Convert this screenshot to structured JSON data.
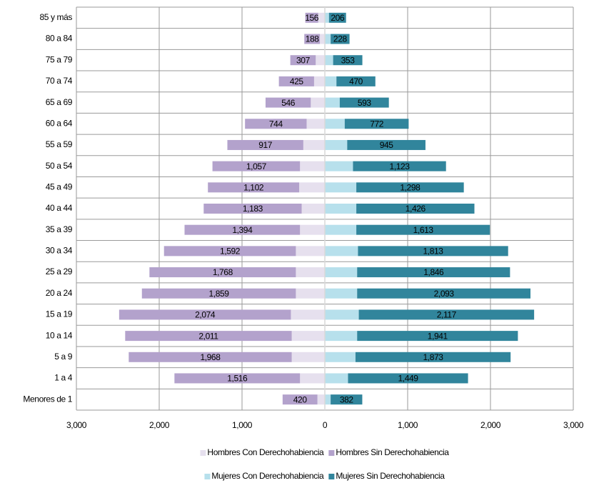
{
  "chart_data": {
    "type": "pyramid",
    "categories": [
      "85 y más",
      "80 a 84",
      "75 a 79",
      "70 a 74",
      "65 a 69",
      "60 a 64",
      "55 a 59",
      "50 a 54",
      "45 a 49",
      "40 a 44",
      "35 a 39",
      "30 a 34",
      "25 a 29",
      "20 a 24",
      "15 a 19",
      "10 a 14",
      "5 a 9",
      "1 a 4",
      "Menores de 1"
    ],
    "series": [
      {
        "name": "Hombres Con Derechohabiencia",
        "color": "#e6e0ee",
        "values": [
          80,
          60,
          110,
          130,
          170,
          220,
          260,
          300,
          310,
          280,
          300,
          350,
          350,
          350,
          410,
          400,
          400,
          300,
          90
        ]
      },
      {
        "name": "Hombres Sin Derechohabiencia",
        "color": "#b3a2cc",
        "values": [
          156,
          188,
          307,
          425,
          546,
          744,
          917,
          1057,
          1102,
          1183,
          1394,
          1592,
          1768,
          1859,
          2074,
          2011,
          1968,
          1516,
          420
        ],
        "value_labels": [
          "156",
          "188",
          "307",
          "425",
          "546",
          "744",
          "917",
          "1,057",
          "1,102",
          "1,183",
          "1,394",
          "1,592",
          "1,768",
          "1,859",
          "2,074",
          "2,011",
          "1,968",
          "1,516",
          "420"
        ]
      },
      {
        "name": "Mujeres Con Derechohabiencia",
        "color": "#b7e0ec",
        "values": [
          50,
          70,
          100,
          140,
          180,
          240,
          270,
          340,
          380,
          380,
          380,
          400,
          390,
          390,
          410,
          390,
          370,
          280,
          70
        ]
      },
      {
        "name": "Mujeres Sin Derechohabiencia",
        "color": "#31859c",
        "values": [
          206,
          228,
          353,
          470,
          593,
          772,
          945,
          1123,
          1298,
          1426,
          1613,
          1813,
          1846,
          2093,
          2117,
          1941,
          1873,
          1449,
          382
        ],
        "value_labels": [
          "206",
          "228",
          "353",
          "470",
          "593",
          "772",
          "945",
          "1,123",
          "1,298",
          "1,426",
          "1,613",
          "1,813",
          "1,846",
          "2,093",
          "2,117",
          "1,941",
          "1,873",
          "1,449",
          "382"
        ]
      }
    ],
    "xlim": [
      -3000,
      3000
    ],
    "xticks": [
      {
        "value": -3000,
        "label": "3,000"
      },
      {
        "value": -2000,
        "label": "2,000"
      },
      {
        "value": -1000,
        "label": "1,000"
      },
      0,
      {
        "value": 1000,
        "label": "1,000"
      },
      {
        "value": 2000,
        "label": "2,000"
      },
      {
        "value": 3000,
        "label": "3,000"
      }
    ],
    "grid": true
  }
}
